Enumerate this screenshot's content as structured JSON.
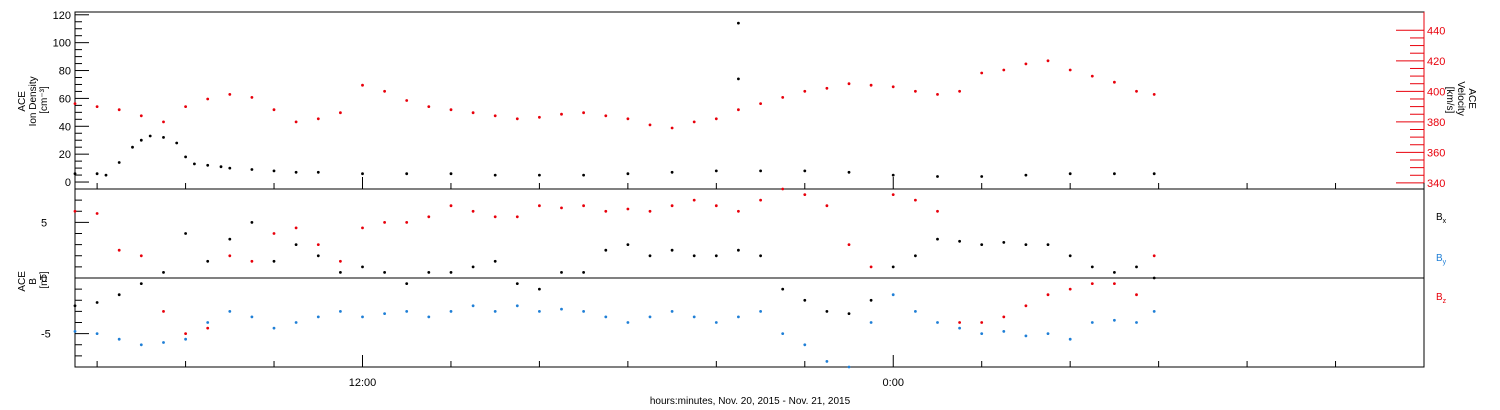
{
  "xlabel": "hours:minutes, Nov. 20, 2015 - Nov. 21, 2015",
  "x_tick_labels": [
    "12:00",
    "0:00"
  ],
  "chart_data": [
    {
      "type": "scatter",
      "panel": "top",
      "x_unit": "hours since 00:00 Nov. 20, 2015",
      "xlim": [
        5.5,
        36.0
      ],
      "left_axis": {
        "label_lines": [
          "ACE",
          "Ion Density"
        ],
        "unit": "[cm⁻³]",
        "ylim": [
          -5,
          122
        ],
        "ticks": [
          0,
          20,
          40,
          60,
          80,
          100,
          120
        ],
        "color": "#000000"
      },
      "right_axis": {
        "label_lines": [
          "ACE",
          "Velocity"
        ],
        "unit": "[km/s]",
        "ylim": [
          336,
          452
        ],
        "ticks": [
          340,
          360,
          380,
          400,
          420,
          440
        ],
        "color": "#e8000b"
      },
      "series": [
        {
          "axis": "left",
          "color": "#000000",
          "x": [
            5.5,
            6.0,
            6.2,
            6.5,
            6.8,
            7.0,
            7.2,
            7.5,
            7.8,
            8.0,
            8.2,
            8.5,
            8.8,
            9.0,
            9.5,
            10.0,
            10.5,
            11.0,
            12.0,
            13.0,
            14.0,
            15.0,
            16.0,
            17.0,
            18.0,
            19.0,
            20.0,
            21.0,
            22.0,
            23.0,
            24.0,
            25.0,
            26.0,
            27.0,
            28.0,
            29.0,
            29.9
          ],
          "values": [
            6,
            6,
            5,
            14,
            25,
            30,
            33,
            32,
            28,
            18,
            13,
            12,
            11,
            10,
            9,
            8,
            7,
            7,
            6,
            6,
            6,
            5,
            5,
            5,
            6,
            7,
            8,
            8,
            8,
            7,
            5,
            4,
            4,
            5,
            6,
            6,
            6
          ]
        },
        {
          "axis": "right",
          "color": "#e8000b",
          "x": [
            5.5,
            6.0,
            6.5,
            7.0,
            7.5,
            8.0,
            8.5,
            9.0,
            9.5,
            10.0,
            10.5,
            11.0,
            11.5,
            12.0,
            12.5,
            13.0,
            13.5,
            14.0,
            14.5,
            15.0,
            15.5,
            16.0,
            16.5,
            17.0,
            17.5,
            18.0,
            18.5,
            19.0,
            19.5,
            20.0,
            20.5,
            21.0,
            21.5,
            22.0,
            22.5,
            23.0,
            23.5,
            24.0,
            24.5,
            25.0,
            25.5,
            26.0,
            26.5,
            27.0,
            27.5,
            28.0,
            28.5,
            29.0,
            29.5,
            29.9
          ],
          "values": [
            392,
            390,
            388,
            384,
            380,
            390,
            395,
            398,
            396,
            388,
            380,
            382,
            386,
            404,
            400,
            394,
            390,
            388,
            386,
            384,
            382,
            383,
            385,
            386,
            384,
            382,
            378,
            376,
            380,
            382,
            388,
            392,
            396,
            400,
            402,
            405,
            404,
            403,
            400,
            398,
            400,
            412,
            414,
            418,
            420,
            414,
            410,
            406,
            400,
            398
          ]
        },
        {
          "axis": "left",
          "color": "#000000",
          "marker": "single",
          "x": [
            20.5,
            20.5
          ],
          "values": [
            114,
            74
          ]
        }
      ]
    },
    {
      "type": "scatter",
      "panel": "bottom",
      "x_unit": "hours since 00:00 Nov. 20, 2015",
      "xlim": [
        5.5,
        36.0
      ],
      "left_axis": {
        "label_lines": [
          "ACE",
          "B"
        ],
        "unit": "[nT]",
        "ylim": [
          -8,
          8
        ],
        "ticks": [
          -5,
          0,
          5
        ],
        "color": "#000000"
      },
      "zero_line": true,
      "series": [
        {
          "name": "Bx",
          "color": "#000000",
          "x": [
            5.5,
            6.0,
            6.5,
            7.0,
            7.5,
            8.0,
            8.5,
            9.0,
            9.5,
            10.0,
            10.5,
            11.0,
            11.5,
            12.0,
            12.5,
            13.0,
            13.5,
            14.0,
            14.5,
            15.0,
            15.5,
            16.0,
            16.5,
            17.0,
            17.5,
            18.0,
            18.5,
            19.0,
            19.5,
            20.0,
            20.5,
            21.0,
            21.5,
            22.0,
            22.5,
            23.0,
            23.5,
            24.0,
            24.5,
            25.0,
            25.5,
            26.0,
            26.5,
            27.0,
            27.5,
            28.0,
            28.5,
            29.0,
            29.5,
            29.9
          ],
          "values": [
            -2.5,
            -2.2,
            -1.5,
            -0.5,
            0.5,
            4.0,
            1.5,
            3.5,
            5.0,
            1.5,
            3.0,
            2.0,
            0.5,
            1.0,
            0.5,
            -0.5,
            0.5,
            0.5,
            1.0,
            1.5,
            -0.5,
            -1.0,
            0.5,
            0.5,
            2.5,
            3.0,
            2.0,
            2.5,
            2.0,
            2.0,
            2.5,
            2.0,
            -1.0,
            -2.0,
            -3.0,
            -3.2,
            -2.0,
            1.0,
            2.0,
            3.5,
            3.3,
            3.0,
            3.2,
            3.0,
            3.0,
            2.0,
            1.0,
            0.5,
            1.0,
            0.0
          ]
        },
        {
          "name": "By",
          "color": "#1f7fd6",
          "x": [
            5.5,
            6.0,
            6.5,
            7.0,
            7.5,
            8.0,
            8.5,
            9.0,
            9.5,
            10.0,
            10.5,
            11.0,
            11.5,
            12.0,
            12.5,
            13.0,
            13.5,
            14.0,
            14.5,
            15.0,
            15.5,
            16.0,
            16.5,
            17.0,
            17.5,
            18.0,
            18.5,
            19.0,
            19.5,
            20.0,
            20.5,
            21.0,
            21.5,
            22.0,
            22.5,
            23.0,
            23.5,
            24.0,
            24.5,
            25.0,
            25.5,
            26.0,
            26.5,
            27.0,
            27.5,
            28.0,
            28.5,
            29.0,
            29.5,
            29.9
          ],
          "values": [
            -4.8,
            -5.0,
            -5.5,
            -6.0,
            -5.8,
            -5.5,
            -4.0,
            -3.0,
            -3.5,
            -4.5,
            -4.0,
            -3.5,
            -3.0,
            -3.5,
            -3.2,
            -3.0,
            -3.5,
            -3.0,
            -2.5,
            -3.0,
            -2.5,
            -3.0,
            -2.8,
            -3.0,
            -3.5,
            -4.0,
            -3.5,
            -3.0,
            -3.5,
            -4.0,
            -3.5,
            -3.0,
            -5.0,
            -6.0,
            -7.5,
            -8.0,
            -4.0,
            -1.5,
            -3.0,
            -4.0,
            -4.5,
            -5.0,
            -4.8,
            -5.2,
            -5.0,
            -5.5,
            -4.0,
            -3.8,
            -4.0,
            -3.0
          ]
        },
        {
          "name": "Bz",
          "color": "#e8000b",
          "x": [
            5.5,
            6.0,
            6.5,
            7.0,
            7.5,
            8.0,
            8.5,
            9.0,
            9.5,
            10.0,
            10.5,
            11.0,
            11.5,
            12.0,
            12.5,
            13.0,
            13.5,
            14.0,
            14.5,
            15.0,
            15.5,
            16.0,
            16.5,
            17.0,
            17.5,
            18.0,
            18.5,
            19.0,
            19.5,
            20.0,
            20.5,
            21.0,
            21.5,
            22.0,
            22.5,
            23.0,
            23.5,
            24.0,
            24.5,
            25.0,
            25.5,
            26.0,
            26.5,
            27.0,
            27.5,
            28.0,
            28.5,
            29.0,
            29.5,
            29.9
          ],
          "values": [
            6.0,
            5.8,
            2.5,
            2.0,
            -3.0,
            -5.0,
            -4.5,
            2.0,
            1.5,
            4.0,
            4.5,
            3.0,
            1.5,
            4.5,
            5.0,
            5.0,
            5.5,
            6.5,
            6.0,
            5.5,
            5.5,
            6.5,
            6.3,
            6.5,
            6.0,
            6.2,
            6.0,
            6.5,
            7.0,
            6.5,
            6.0,
            7.0,
            8.0,
            7.5,
            6.5,
            3.0,
            1.0,
            7.5,
            7.0,
            6.0,
            -4.0,
            -4.0,
            -3.5,
            -2.5,
            -1.5,
            -1.0,
            -0.5,
            -0.5,
            -1.5,
            2.0
          ]
        }
      ],
      "legend": {
        "placement": "right",
        "entries": [
          {
            "base": "B",
            "sub": "x",
            "color": "#000000"
          },
          {
            "base": "B",
            "sub": "y",
            "color": "#1f7fd6"
          },
          {
            "base": "B",
            "sub": "z",
            "color": "#e8000b"
          }
        ]
      }
    }
  ]
}
